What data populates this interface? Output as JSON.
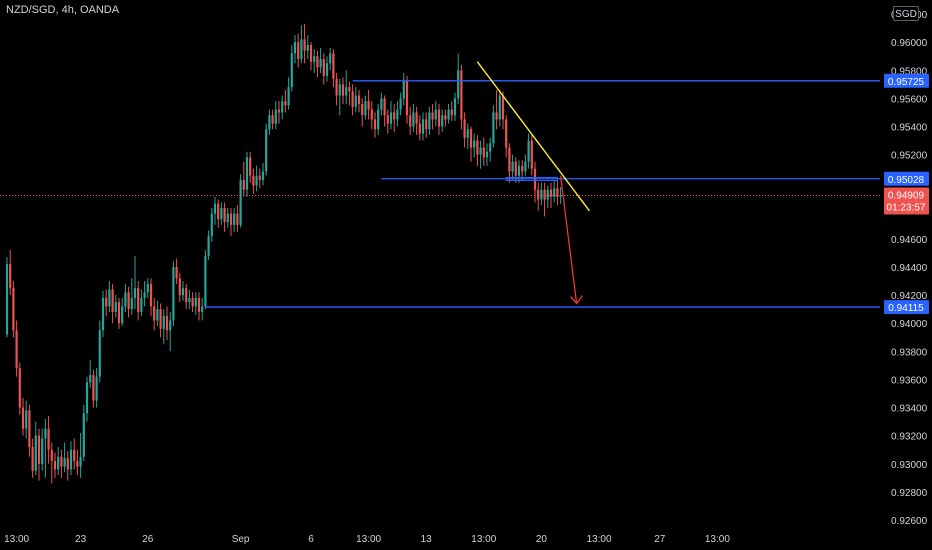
{
  "header": {
    "symbol": "NZD/SGD, 4h, OANDA",
    "currency": "SGD"
  },
  "colors": {
    "up": "#26a69a",
    "down": "#ef5350",
    "level": "#2962ff",
    "trendline": "#ffeb3b",
    "arrow": "#e53935",
    "price_line": "#ef5350",
    "axis_text": "#d1d4dc"
  },
  "chart_data": {
    "type": "candlestick",
    "y_ticks": [
      "0.96200",
      "0.96000",
      "0.95800",
      "0.95600",
      "0.95400",
      "0.95200",
      "0.94600",
      "0.94400",
      "0.94200",
      "0.94000",
      "0.93800",
      "0.93600",
      "0.93400",
      "0.93200",
      "0.93000",
      "0.92800",
      "0.92600"
    ],
    "x_ticks": [
      "13:00",
      "23",
      "26",
      "Sep",
      "6",
      "13:00",
      "13",
      "13:00",
      "20",
      "13:00",
      "27",
      "13:00"
    ],
    "ylim": [
      0.9255,
      0.963
    ],
    "x_count": 220,
    "x_tick_index": [
      3,
      23,
      44,
      73,
      95,
      113,
      131,
      149,
      167,
      185,
      204,
      222
    ],
    "levels": [
      {
        "price": 0.95725,
        "label": "0.95725",
        "start": 108
      },
      {
        "price": 0.95028,
        "label": "0.95028",
        "start": 117
      },
      {
        "price": 0.94115,
        "label": "0.94115",
        "start": 62
      }
    ],
    "current_price": {
      "price": 0.94909,
      "label": "0.94909",
      "countdown": "01:23:57"
    },
    "trendline": [
      {
        "x": 147,
        "y": 0.9586
      },
      {
        "x": 182,
        "y": 0.948
      }
    ],
    "arrow": [
      {
        "x": 173,
        "y": 0.9505
      },
      {
        "x": 178,
        "y": 0.9414
      }
    ],
    "zone": {
      "x0": 156,
      "x1": 172,
      "y0": 0.9502,
      "y1": 0.9503
    },
    "candles": [
      [
        0.9392,
        0.9442,
        0.939,
        0.9447
      ],
      [
        0.9442,
        0.9425,
        0.942,
        0.9452
      ],
      [
        0.9425,
        0.9395,
        0.939,
        0.943
      ],
      [
        0.9395,
        0.9368,
        0.9362,
        0.9402
      ],
      [
        0.9368,
        0.934,
        0.9335,
        0.9372
      ],
      [
        0.934,
        0.9325,
        0.932,
        0.9347
      ],
      [
        0.9325,
        0.9338,
        0.9318,
        0.9345
      ],
      [
        0.9338,
        0.9312,
        0.9305,
        0.9342
      ],
      [
        0.9312,
        0.9295,
        0.929,
        0.9318
      ],
      [
        0.9295,
        0.932,
        0.9292,
        0.933
      ],
      [
        0.932,
        0.93,
        0.9288,
        0.9325
      ],
      [
        0.93,
        0.9318,
        0.9295,
        0.9325
      ],
      [
        0.9318,
        0.9325,
        0.929,
        0.9332
      ],
      [
        0.9325,
        0.931,
        0.93,
        0.9334
      ],
      [
        0.931,
        0.9302,
        0.9286,
        0.9315
      ],
      [
        0.9302,
        0.9296,
        0.929,
        0.9308
      ],
      [
        0.9296,
        0.9305,
        0.9292,
        0.9312
      ],
      [
        0.9305,
        0.9298,
        0.929,
        0.931
      ],
      [
        0.9298,
        0.9304,
        0.9294,
        0.9315
      ],
      [
        0.9304,
        0.9296,
        0.9288,
        0.9309
      ],
      [
        0.9296,
        0.931,
        0.9292,
        0.9316
      ],
      [
        0.931,
        0.9302,
        0.9296,
        0.9318
      ],
      [
        0.9302,
        0.9298,
        0.9292,
        0.931
      ],
      [
        0.9298,
        0.9305,
        0.929,
        0.9322
      ],
      [
        0.9305,
        0.9336,
        0.9302,
        0.9342
      ],
      [
        0.9336,
        0.9358,
        0.933,
        0.9362
      ],
      [
        0.9358,
        0.9363,
        0.9354,
        0.9374
      ],
      [
        0.9363,
        0.9345,
        0.934,
        0.9367
      ],
      [
        0.9345,
        0.9362,
        0.934,
        0.9368
      ],
      [
        0.9362,
        0.9395,
        0.9358,
        0.9402
      ],
      [
        0.9395,
        0.9418,
        0.939,
        0.9423
      ],
      [
        0.9418,
        0.9412,
        0.9405,
        0.9424
      ],
      [
        0.9412,
        0.9424,
        0.9408,
        0.943
      ],
      [
        0.9424,
        0.9408,
        0.94,
        0.9428
      ],
      [
        0.9408,
        0.9415,
        0.9404,
        0.942
      ],
      [
        0.9415,
        0.94,
        0.9396,
        0.9418
      ],
      [
        0.94,
        0.9412,
        0.9398,
        0.9418
      ],
      [
        0.9412,
        0.9422,
        0.9408,
        0.9428
      ],
      [
        0.9422,
        0.941,
        0.9404,
        0.9426
      ],
      [
        0.941,
        0.9418,
        0.9406,
        0.9432
      ],
      [
        0.9418,
        0.9425,
        0.941,
        0.9448
      ],
      [
        0.9425,
        0.9408,
        0.9402,
        0.943
      ],
      [
        0.9408,
        0.9418,
        0.9405,
        0.9424
      ],
      [
        0.9418,
        0.9422,
        0.9412,
        0.943
      ],
      [
        0.9422,
        0.9428,
        0.9418,
        0.9432
      ],
      [
        0.9428,
        0.9412,
        0.9405,
        0.9432
      ],
      [
        0.9412,
        0.9402,
        0.9395,
        0.9418
      ],
      [
        0.9402,
        0.941,
        0.9398,
        0.9416
      ],
      [
        0.941,
        0.9396,
        0.939,
        0.9414
      ],
      [
        0.9396,
        0.9405,
        0.9385,
        0.941
      ],
      [
        0.9405,
        0.9395,
        0.9388,
        0.9412
      ],
      [
        0.9395,
        0.9402,
        0.938,
        0.9408
      ],
      [
        0.9402,
        0.944,
        0.9398,
        0.9444
      ],
      [
        0.944,
        0.9432,
        0.9428,
        0.9446
      ],
      [
        0.9432,
        0.942,
        0.9415,
        0.9436
      ],
      [
        0.942,
        0.9425,
        0.9416,
        0.943
      ],
      [
        0.9425,
        0.9415,
        0.941,
        0.9428
      ],
      [
        0.9415,
        0.9418,
        0.941,
        0.9424
      ],
      [
        0.9418,
        0.9412,
        0.9408,
        0.9422
      ],
      [
        0.9412,
        0.9418,
        0.9406,
        0.9422
      ],
      [
        0.9418,
        0.9408,
        0.9402,
        0.9422
      ],
      [
        0.9408,
        0.9412,
        0.9402,
        0.9418
      ],
      [
        0.9412,
        0.9448,
        0.941,
        0.9452
      ],
      [
        0.9448,
        0.9462,
        0.9445,
        0.9466
      ],
      [
        0.9462,
        0.9478,
        0.9458,
        0.9482
      ],
      [
        0.9478,
        0.9485,
        0.947,
        0.949
      ],
      [
        0.9485,
        0.9474,
        0.9468,
        0.9488
      ],
      [
        0.9474,
        0.9482,
        0.947,
        0.9486
      ],
      [
        0.9482,
        0.9472,
        0.9465,
        0.9486
      ],
      [
        0.9472,
        0.9478,
        0.9468,
        0.9482
      ],
      [
        0.9478,
        0.947,
        0.9462,
        0.9482
      ],
      [
        0.947,
        0.9478,
        0.9465,
        0.9482
      ],
      [
        0.9478,
        0.947,
        0.9465,
        0.9484
      ],
      [
        0.947,
        0.9502,
        0.9468,
        0.9506
      ],
      [
        0.9502,
        0.9495,
        0.949,
        0.9515
      ],
      [
        0.9495,
        0.9518,
        0.949,
        0.9522
      ],
      [
        0.9518,
        0.9505,
        0.95,
        0.9522
      ],
      [
        0.9505,
        0.9498,
        0.9492,
        0.951
      ],
      [
        0.9498,
        0.9505,
        0.9494,
        0.9512
      ],
      [
        0.9505,
        0.9502,
        0.9496,
        0.951
      ],
      [
        0.9502,
        0.9508,
        0.9498,
        0.9514
      ],
      [
        0.9508,
        0.9538,
        0.9505,
        0.9542
      ],
      [
        0.9538,
        0.9548,
        0.9534,
        0.9552
      ],
      [
        0.9548,
        0.9542,
        0.9538,
        0.9552
      ],
      [
        0.9542,
        0.9552,
        0.9538,
        0.9558
      ],
      [
        0.9552,
        0.955,
        0.9542,
        0.9558
      ],
      [
        0.955,
        0.9558,
        0.9545,
        0.9562
      ],
      [
        0.9558,
        0.9555,
        0.955,
        0.9566
      ],
      [
        0.9555,
        0.9568,
        0.9552,
        0.9575
      ],
      [
        0.9568,
        0.9592,
        0.9565,
        0.9598
      ],
      [
        0.9592,
        0.96,
        0.9585,
        0.9605
      ],
      [
        0.96,
        0.9588,
        0.9582,
        0.9606
      ],
      [
        0.9588,
        0.9602,
        0.9585,
        0.9612
      ],
      [
        0.9602,
        0.9594,
        0.9585,
        0.9613
      ],
      [
        0.9594,
        0.9598,
        0.9588,
        0.9605
      ],
      [
        0.9598,
        0.9586,
        0.958,
        0.96
      ],
      [
        0.9586,
        0.959,
        0.9578,
        0.9595
      ],
      [
        0.959,
        0.9582,
        0.9575,
        0.9594
      ],
      [
        0.9582,
        0.9588,
        0.9578,
        0.9596
      ],
      [
        0.9588,
        0.9576,
        0.957,
        0.9592
      ],
      [
        0.9576,
        0.9585,
        0.9572,
        0.959
      ],
      [
        0.9585,
        0.9592,
        0.958,
        0.9596
      ],
      [
        0.9592,
        0.9574,
        0.9568,
        0.9595
      ],
      [
        0.9574,
        0.9562,
        0.9555,
        0.9578
      ],
      [
        0.9562,
        0.957,
        0.9548,
        0.9574
      ],
      [
        0.957,
        0.9562,
        0.9556,
        0.9575
      ],
      [
        0.9562,
        0.9568,
        0.9556,
        0.958
      ],
      [
        0.9568,
        0.9565,
        0.9555,
        0.9572
      ],
      [
        0.9565,
        0.9554,
        0.9548,
        0.957
      ],
      [
        0.9554,
        0.9562,
        0.955,
        0.9568
      ],
      [
        0.9562,
        0.9556,
        0.955,
        0.9566
      ],
      [
        0.9556,
        0.9548,
        0.954,
        0.956
      ],
      [
        0.9548,
        0.9558,
        0.9545,
        0.9562
      ],
      [
        0.9558,
        0.9552,
        0.9545,
        0.9566
      ],
      [
        0.9552,
        0.9545,
        0.9538,
        0.9558
      ],
      [
        0.9545,
        0.9538,
        0.9532,
        0.955
      ],
      [
        0.9538,
        0.9552,
        0.9534,
        0.9556
      ],
      [
        0.9552,
        0.956,
        0.9548,
        0.9564
      ],
      [
        0.956,
        0.9548,
        0.954,
        0.9562
      ],
      [
        0.9548,
        0.9542,
        0.9535,
        0.9552
      ],
      [
        0.9542,
        0.955,
        0.9538,
        0.9558
      ],
      [
        0.955,
        0.9545,
        0.9536,
        0.9556
      ],
      [
        0.9545,
        0.9552,
        0.954,
        0.9558
      ],
      [
        0.9552,
        0.956,
        0.9548,
        0.9564
      ],
      [
        0.956,
        0.9572,
        0.9555,
        0.9578
      ],
      [
        0.9572,
        0.9548,
        0.9542,
        0.9576
      ],
      [
        0.9548,
        0.954,
        0.9534,
        0.9554
      ],
      [
        0.954,
        0.955,
        0.9536,
        0.9556
      ],
      [
        0.955,
        0.9542,
        0.9534,
        0.9554
      ],
      [
        0.9542,
        0.9535,
        0.953,
        0.9548
      ],
      [
        0.9535,
        0.9545,
        0.953,
        0.955
      ],
      [
        0.9545,
        0.9538,
        0.9532,
        0.955
      ],
      [
        0.9538,
        0.955,
        0.9534,
        0.9554
      ],
      [
        0.955,
        0.9545,
        0.9538,
        0.9556
      ],
      [
        0.9545,
        0.9552,
        0.954,
        0.9558
      ],
      [
        0.9552,
        0.954,
        0.9534,
        0.9556
      ],
      [
        0.954,
        0.9548,
        0.9536,
        0.9552
      ],
      [
        0.9548,
        0.9545,
        0.954,
        0.9552
      ],
      [
        0.9545,
        0.9552,
        0.9542,
        0.9556
      ],
      [
        0.9552,
        0.9548,
        0.9544,
        0.9558
      ],
      [
        0.9548,
        0.956,
        0.9544,
        0.9564
      ],
      [
        0.956,
        0.958,
        0.9556,
        0.9592
      ],
      [
        0.958,
        0.9545,
        0.9538,
        0.9584
      ],
      [
        0.9545,
        0.9532,
        0.9525,
        0.955
      ],
      [
        0.9532,
        0.9538,
        0.9524,
        0.9542
      ],
      [
        0.9538,
        0.9525,
        0.9515,
        0.954
      ],
      [
        0.9525,
        0.953,
        0.9518,
        0.9535
      ],
      [
        0.953,
        0.952,
        0.9512,
        0.9534
      ],
      [
        0.952,
        0.9525,
        0.951,
        0.953
      ],
      [
        0.9525,
        0.9518,
        0.9512,
        0.9532
      ],
      [
        0.9518,
        0.9522,
        0.9512,
        0.9528
      ],
      [
        0.9522,
        0.9528,
        0.9515,
        0.9532
      ],
      [
        0.9528,
        0.955,
        0.9525,
        0.9555
      ],
      [
        0.955,
        0.9545,
        0.9538,
        0.9566
      ],
      [
        0.9545,
        0.9562,
        0.954,
        0.9566
      ],
      [
        0.9562,
        0.9545,
        0.9538,
        0.9565
      ],
      [
        0.9545,
        0.9525,
        0.9518,
        0.9548
      ],
      [
        0.9525,
        0.9508,
        0.95,
        0.9528
      ],
      [
        0.9508,
        0.9515,
        0.9502,
        0.952
      ],
      [
        0.9515,
        0.9505,
        0.95,
        0.9518
      ],
      [
        0.9505,
        0.9512,
        0.95,
        0.9516
      ],
      [
        0.9512,
        0.9508,
        0.9502,
        0.9516
      ],
      [
        0.9508,
        0.9515,
        0.9505,
        0.952
      ],
      [
        0.9515,
        0.953,
        0.951,
        0.9535
      ],
      [
        0.953,
        0.951,
        0.9505,
        0.9534
      ],
      [
        0.951,
        0.9495,
        0.9486,
        0.9515
      ],
      [
        0.9495,
        0.9488,
        0.948,
        0.95
      ],
      [
        0.9488,
        0.9495,
        0.9484,
        0.95
      ],
      [
        0.9495,
        0.9488,
        0.9476,
        0.95
      ],
      [
        0.9488,
        0.9495,
        0.9482,
        0.9498
      ],
      [
        0.9495,
        0.949,
        0.9482,
        0.95
      ],
      [
        0.949,
        0.9496,
        0.9486,
        0.9502
      ],
      [
        0.9496,
        0.949,
        0.9484,
        0.9502
      ],
      [
        0.949,
        0.9491,
        0.9485,
        0.9497
      ]
    ]
  }
}
